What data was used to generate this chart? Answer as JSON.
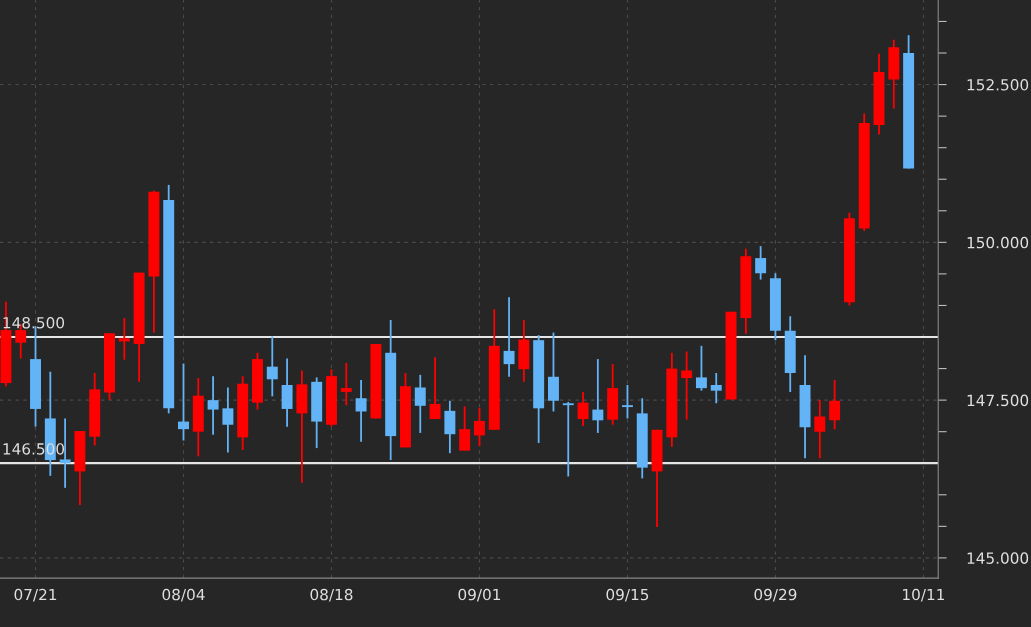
{
  "chart_data": {
    "type": "candlestick",
    "categories": [
      null,
      null,
      "07/21",
      null,
      null,
      null,
      null,
      null,
      null,
      null,
      null,
      null,
      "08/04",
      null,
      null,
      null,
      null,
      null,
      null,
      null,
      null,
      null,
      "08/18",
      null,
      null,
      null,
      null,
      null,
      null,
      null,
      null,
      null,
      "09/01",
      null,
      null,
      null,
      null,
      null,
      null,
      null,
      null,
      null,
      "09/15",
      null,
      null,
      null,
      null,
      null,
      null,
      null,
      null,
      null,
      "09/29",
      null,
      null,
      null,
      null,
      null,
      null,
      null,
      null,
      null,
      "10/11"
    ],
    "ohlc": [
      [
        147.77,
        149.06,
        147.72,
        148.61
      ],
      [
        148.41,
        148.7,
        148.16,
        148.61
      ],
      [
        148.15,
        148.67,
        147.08,
        147.36
      ],
      [
        147.21,
        147.95,
        146.3,
        146.55
      ],
      [
        146.56,
        147.21,
        146.11,
        146.5
      ],
      [
        146.37,
        147.01,
        145.84,
        147.01
      ],
      [
        146.92,
        147.93,
        146.78,
        147.67
      ],
      [
        147.62,
        148.56,
        147.5,
        148.56
      ],
      [
        148.43,
        148.8,
        148.14,
        148.48
      ],
      [
        148.39,
        149.52,
        147.79,
        149.52
      ],
      [
        149.46,
        150.82,
        148.57,
        150.8
      ],
      [
        150.67,
        150.91,
        147.29,
        147.37
      ],
      [
        147.16,
        148.08,
        146.86,
        147.04
      ],
      [
        147.0,
        147.85,
        146.61,
        147.57
      ],
      [
        147.5,
        147.88,
        146.95,
        147.35
      ],
      [
        147.37,
        147.7,
        146.67,
        147.11
      ],
      [
        146.91,
        147.88,
        146.71,
        147.76
      ],
      [
        147.46,
        148.25,
        147.35,
        148.15
      ],
      [
        148.03,
        148.51,
        147.56,
        147.83
      ],
      [
        147.74,
        148.16,
        147.08,
        147.36
      ],
      [
        147.29,
        147.97,
        146.19,
        147.75
      ],
      [
        147.79,
        147.86,
        146.74,
        147.16
      ],
      [
        147.11,
        147.99,
        147.08,
        147.88
      ],
      [
        147.63,
        148.09,
        147.42,
        147.69
      ],
      [
        147.53,
        147.82,
        146.84,
        147.32
      ],
      [
        147.21,
        148.39,
        147.21,
        148.39
      ],
      [
        148.25,
        148.77,
        146.55,
        146.93
      ],
      [
        146.75,
        147.93,
        146.75,
        147.72
      ],
      [
        147.7,
        147.9,
        146.98,
        147.41
      ],
      [
        147.2,
        148.18,
        147.2,
        147.44
      ],
      [
        147.33,
        147.49,
        146.66,
        146.96
      ],
      [
        146.7,
        147.4,
        146.7,
        147.04
      ],
      [
        146.94,
        147.38,
        146.77,
        147.17
      ],
      [
        147.03,
        148.94,
        147.03,
        148.36
      ],
      [
        148.28,
        149.13,
        147.87,
        148.07
      ],
      [
        147.99,
        148.77,
        147.79,
        148.46
      ],
      [
        148.45,
        148.53,
        146.82,
        147.37
      ],
      [
        147.87,
        148.57,
        147.32,
        147.49
      ],
      [
        147.45,
        147.47,
        146.29,
        147.42
      ],
      [
        147.2,
        147.63,
        147.09,
        147.46
      ],
      [
        147.35,
        148.15,
        146.98,
        147.18
      ],
      [
        147.19,
        148.07,
        147.11,
        147.69
      ],
      [
        147.42,
        147.74,
        147.21,
        147.39
      ],
      [
        147.29,
        147.53,
        146.26,
        146.43
      ],
      [
        146.37,
        147.03,
        145.49,
        147.03
      ],
      [
        146.91,
        148.25,
        146.76,
        148.0
      ],
      [
        147.85,
        148.27,
        147.19,
        147.97
      ],
      [
        147.86,
        148.36,
        147.65,
        147.69
      ],
      [
        147.74,
        147.93,
        147.45,
        147.65
      ],
      [
        147.51,
        148.9,
        147.51,
        148.9
      ],
      [
        148.8,
        149.9,
        148.55,
        149.78
      ],
      [
        149.75,
        149.94,
        149.41,
        149.51
      ],
      [
        149.43,
        149.51,
        148.45,
        148.6
      ],
      [
        148.6,
        148.83,
        147.63,
        147.93
      ],
      [
        147.74,
        148.21,
        146.58,
        147.07
      ],
      [
        147.0,
        147.5,
        146.58,
        147.24
      ],
      [
        147.18,
        147.82,
        147.04,
        147.49
      ],
      [
        149.05,
        150.47,
        149.0,
        150.38
      ],
      [
        150.22,
        152.04,
        150.18,
        151.89
      ],
      [
        151.86,
        152.99,
        151.71,
        152.7
      ],
      [
        152.58,
        153.21,
        152.12,
        153.09
      ],
      [
        153.0,
        153.28,
        151.17,
        151.17
      ],
      null
    ],
    "colors": [
      "#ff0000",
      "#ff0000",
      "#63b4f7",
      "#63b4f7",
      "#63b4f7",
      "#ff0000",
      "#ff0000",
      "#ff0000",
      "#ff0000",
      "#ff0000",
      "#ff0000",
      "#63b4f7",
      "#63b4f7",
      "#ff0000",
      "#63b4f7",
      "#63b4f7",
      "#ff0000",
      "#ff0000",
      "#63b4f7",
      "#63b4f7",
      "#ff0000",
      "#63b4f7",
      "#ff0000",
      "#ff0000",
      "#63b4f7",
      "#ff0000",
      "#63b4f7",
      "#ff0000",
      "#63b4f7",
      "#ff0000",
      "#63b4f7",
      "#ff0000",
      "#ff0000",
      "#ff0000",
      "#63b4f7",
      "#ff0000",
      "#63b4f7",
      "#63b4f7",
      "#63b4f7",
      "#ff0000",
      "#63b4f7",
      "#ff0000",
      "#63b4f7",
      "#63b4f7",
      "#ff0000",
      "#ff0000",
      "#ff0000",
      "#63b4f7",
      "#63b4f7",
      "#ff0000",
      "#ff0000",
      "#63b4f7",
      "#63b4f7",
      "#63b4f7",
      "#63b4f7",
      "#ff0000",
      "#ff0000",
      "#ff0000",
      "#ff0000",
      "#ff0000",
      "#ff0000",
      "#63b4f7",
      null
    ],
    "ylim": [
      144.68,
      153.84
    ],
    "yticks": [
      {
        "value": 145,
        "label": "145.000"
      },
      {
        "value": 145.5,
        "label": null
      },
      {
        "value": 146,
        "label": null
      },
      {
        "value": 147,
        "label": null
      },
      {
        "value": 147.5,
        "label": "147.500"
      },
      {
        "value": 148,
        "label": null
      },
      {
        "value": 149,
        "label": null
      },
      {
        "value": 149.5,
        "label": null
      },
      {
        "value": 150,
        "label": "150.000"
      },
      {
        "value": 150.5,
        "label": null
      },
      {
        "value": 151,
        "label": null
      },
      {
        "value": 151.5,
        "label": null
      },
      {
        "value": 152,
        "label": null
      },
      {
        "value": 152.5,
        "label": "152.500"
      },
      {
        "value": 153,
        "label": null
      },
      {
        "value": 153.5,
        "label": null
      }
    ],
    "grid": true,
    "ref_lines": [
      {
        "axis": "y",
        "value": 148.5,
        "label": "148.500",
        "color": "#e6e6e6"
      },
      {
        "axis": "y",
        "value": 146.5,
        "label": "146.500",
        "color": "#e6e6e6"
      }
    ]
  }
}
